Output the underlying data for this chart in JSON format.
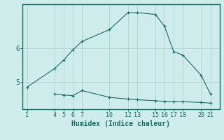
{
  "xlabel": "Humidex (Indice chaleur)",
  "ylabel": "",
  "bg_color": "#ceecea",
  "grid_color": "#aed8d4",
  "line_color": "#1a6b63",
  "series1_x": [
    1,
    4,
    5,
    6,
    7,
    10,
    12,
    13,
    15,
    16,
    17,
    18,
    20,
    21
  ],
  "series1_y": [
    4.85,
    5.4,
    5.65,
    5.95,
    6.2,
    6.55,
    7.05,
    7.05,
    7.0,
    6.65,
    5.9,
    5.8,
    5.2,
    4.65
  ],
  "series2_x": [
    4,
    5,
    6,
    7,
    10,
    12,
    13,
    15,
    16,
    17,
    18,
    20,
    21
  ],
  "series2_y": [
    4.65,
    4.62,
    4.6,
    4.75,
    4.55,
    4.5,
    4.48,
    4.45,
    4.43,
    4.42,
    4.42,
    4.4,
    4.38
  ],
  "xticks": [
    1,
    4,
    5,
    6,
    7,
    10,
    12,
    13,
    15,
    16,
    17,
    18,
    20,
    21
  ],
  "yticks": [
    5,
    6
  ],
  "xlim": [
    0.5,
    22.0
  ],
  "ylim": [
    4.2,
    7.3
  ],
  "axis_color": "#1a6b63",
  "tick_fontsize": 6,
  "xlabel_fontsize": 7
}
